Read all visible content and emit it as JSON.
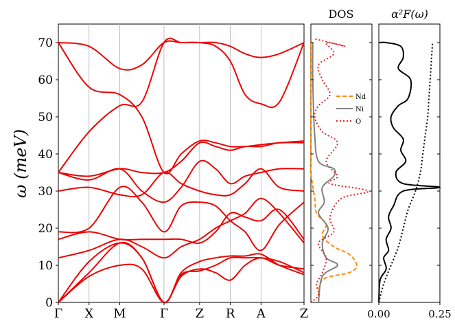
{
  "chart_data": [
    {
      "type": "line",
      "panel": "phonon-dispersion",
      "ylabel": "ω (meV)",
      "ylim": [
        0,
        75
      ],
      "yticks": [
        0,
        10,
        20,
        30,
        40,
        50,
        60,
        70
      ],
      "xtick_labels": [
        "Γ",
        "X",
        "M",
        "Γ",
        "Z",
        "R",
        "A",
        "Z"
      ],
      "xtick_positions": [
        0,
        0.125,
        0.25,
        0.43,
        0.575,
        0.7,
        0.825,
        1.0
      ],
      "grid": "vertical lines at high-symmetry points",
      "color": "#ee0000",
      "branches": [
        [
          [
            0,
            0
          ],
          [
            0.125,
            7
          ],
          [
            0.25,
            10
          ],
          [
            0.34,
            9
          ],
          [
            0.43,
            0
          ],
          [
            0.5,
            7
          ],
          [
            0.575,
            9
          ],
          [
            0.64,
            8
          ],
          [
            0.7,
            6
          ],
          [
            0.76,
            10
          ],
          [
            0.825,
            12
          ],
          [
            0.9,
            10
          ],
          [
            1.0,
            9
          ]
        ],
        [
          [
            0,
            0
          ],
          [
            0.125,
            8
          ],
          [
            0.25,
            16
          ],
          [
            0.34,
            12
          ],
          [
            0.43,
            0
          ],
          [
            0.5,
            7.5
          ],
          [
            0.575,
            8.5
          ],
          [
            0.64,
            10
          ],
          [
            0.7,
            12
          ],
          [
            0.76,
            12
          ],
          [
            0.825,
            12
          ],
          [
            0.9,
            11
          ],
          [
            1.0,
            8
          ]
        ],
        [
          [
            0,
            0
          ],
          [
            0.125,
            11
          ],
          [
            0.25,
            16
          ],
          [
            0.34,
            12
          ],
          [
            0.43,
            0
          ],
          [
            0.5,
            8
          ],
          [
            0.575,
            11
          ],
          [
            0.64,
            12
          ],
          [
            0.7,
            12.5
          ],
          [
            0.76,
            12.5
          ],
          [
            0.825,
            13
          ],
          [
            0.9,
            10
          ],
          [
            1.0,
            7.5
          ]
        ],
        [
          [
            0,
            12
          ],
          [
            0.125,
            14
          ],
          [
            0.25,
            17
          ],
          [
            0.34,
            15
          ],
          [
            0.43,
            12
          ],
          [
            0.5,
            15
          ],
          [
            0.575,
            17
          ],
          [
            0.64,
            20
          ],
          [
            0.7,
            22
          ],
          [
            0.76,
            24
          ],
          [
            0.825,
            28
          ],
          [
            0.9,
            24
          ],
          [
            1.0,
            16
          ]
        ],
        [
          [
            0,
            17
          ],
          [
            0.125,
            19
          ],
          [
            0.25,
            17
          ],
          [
            0.34,
            17
          ],
          [
            0.43,
            17
          ],
          [
            0.5,
            17
          ],
          [
            0.575,
            16
          ],
          [
            0.64,
            19
          ],
          [
            0.7,
            24
          ],
          [
            0.76,
            23
          ],
          [
            0.825,
            22
          ],
          [
            0.9,
            25
          ],
          [
            1.0,
            17
          ]
        ],
        [
          [
            0,
            19
          ],
          [
            0.125,
            20
          ],
          [
            0.25,
            31
          ],
          [
            0.34,
            27
          ],
          [
            0.43,
            19
          ],
          [
            0.5,
            26
          ],
          [
            0.575,
            27
          ],
          [
            0.64,
            26
          ],
          [
            0.7,
            22
          ],
          [
            0.76,
            19
          ],
          [
            0.825,
            14
          ],
          [
            0.9,
            21
          ],
          [
            1.0,
            27
          ]
        ],
        [
          [
            0,
            30
          ],
          [
            0.125,
            31
          ],
          [
            0.25,
            29
          ],
          [
            0.34,
            29
          ],
          [
            0.43,
            35
          ],
          [
            0.5,
            32
          ],
          [
            0.575,
            30
          ],
          [
            0.64,
            29
          ],
          [
            0.7,
            29
          ],
          [
            0.76,
            32
          ],
          [
            0.825,
            36
          ],
          [
            0.9,
            31
          ],
          [
            1.0,
            30
          ]
        ],
        [
          [
            0,
            35
          ],
          [
            0.125,
            33
          ],
          [
            0.25,
            36
          ],
          [
            0.34,
            30
          ],
          [
            0.43,
            27
          ],
          [
            0.5,
            31
          ],
          [
            0.575,
            38
          ],
          [
            0.64,
            36
          ],
          [
            0.7,
            32
          ],
          [
            0.76,
            34
          ],
          [
            0.825,
            35
          ],
          [
            0.9,
            36
          ],
          [
            1.0,
            36
          ]
        ],
        [
          [
            0,
            35
          ],
          [
            0.125,
            34
          ],
          [
            0.25,
            36
          ],
          [
            0.34,
            35
          ],
          [
            0.43,
            35
          ],
          [
            0.5,
            38
          ],
          [
            0.575,
            43
          ],
          [
            0.64,
            42
          ],
          [
            0.7,
            41
          ],
          [
            0.76,
            42
          ],
          [
            0.825,
            42
          ],
          [
            0.9,
            43
          ],
          [
            1.0,
            43
          ]
        ],
        [
          [
            0,
            35
          ],
          [
            0.125,
            46
          ],
          [
            0.25,
            53
          ],
          [
            0.34,
            54
          ],
          [
            0.43,
            70
          ],
          [
            0.5,
            70
          ],
          [
            0.575,
            70
          ],
          [
            0.64,
            69
          ],
          [
            0.7,
            65
          ],
          [
            0.76,
            56
          ],
          [
            0.825,
            53.5
          ],
          [
            0.9,
            54
          ],
          [
            1.0,
            70
          ]
        ],
        [
          [
            0,
            70
          ],
          [
            0.125,
            58
          ],
          [
            0.25,
            56
          ],
          [
            0.34,
            50
          ],
          [
            0.43,
            35
          ],
          [
            0.5,
            40
          ],
          [
            0.575,
            43.5
          ],
          [
            0.64,
            43
          ],
          [
            0.7,
            42
          ],
          [
            0.76,
            42
          ],
          [
            0.825,
            42.5
          ],
          [
            0.9,
            43
          ],
          [
            1.0,
            43.5
          ]
        ],
        [
          [
            0,
            70
          ],
          [
            0.125,
            69
          ],
          [
            0.25,
            63
          ],
          [
            0.34,
            64
          ],
          [
            0.43,
            70
          ],
          [
            0.5,
            70
          ],
          [
            0.575,
            70
          ],
          [
            0.64,
            70
          ],
          [
            0.7,
            69
          ],
          [
            0.76,
            67
          ],
          [
            0.825,
            66
          ],
          [
            0.9,
            67
          ],
          [
            1.0,
            70
          ]
        ]
      ]
    },
    {
      "type": "line",
      "panel": "dos",
      "title": "DOS",
      "legend_position": "right",
      "series": [
        {
          "name": "Nd",
          "color": "#ff8c00",
          "dash": "dashed",
          "points": [
            [
              0.02,
              0
            ],
            [
              0.03,
              6
            ],
            [
              0.1,
              8
            ],
            [
              0.12,
              10
            ],
            [
              0.1,
              13
            ],
            [
              0.06,
              15
            ],
            [
              0.03,
              18
            ],
            [
              0.04,
              21
            ],
            [
              0.015,
              24
            ],
            [
              0.01,
              28
            ],
            [
              0,
              35
            ],
            [
              0,
              40
            ],
            [
              0,
              70
            ]
          ]
        },
        {
          "name": "Ni",
          "color": "#808080",
          "dash": "solid",
          "points": [
            [
              0.02,
              0
            ],
            [
              0.03,
              7
            ],
            [
              0.07,
              10
            ],
            [
              0.04,
              12
            ],
            [
              0.03,
              16
            ],
            [
              0.045,
              20
            ],
            [
              0.02,
              24
            ],
            [
              0.035,
              27
            ],
            [
              0.03,
              31
            ],
            [
              0.06,
              34
            ],
            [
              0.06,
              36
            ],
            [
              0.02,
              38
            ],
            [
              0.01,
              45
            ],
            [
              0.005,
              60
            ],
            [
              0.005,
              70
            ]
          ]
        },
        {
          "name": "O",
          "color": "#dd2222",
          "dash": "dotted",
          "points": [
            [
              0,
              0
            ],
            [
              0.02,
              2
            ],
            [
              0.015,
              5
            ],
            [
              0.03,
              8
            ],
            [
              0.04,
              12
            ],
            [
              0.02,
              16
            ],
            [
              0.06,
              19
            ],
            [
              0.05,
              23
            ],
            [
              0.08,
              28
            ],
            [
              0.15,
              30
            ],
            [
              0.05,
              32
            ],
            [
              0.07,
              34
            ],
            [
              0.04,
              38
            ],
            [
              0.07,
              43
            ],
            [
              0.03,
              46
            ],
            [
              0.01,
              50
            ],
            [
              0.02,
              53
            ],
            [
              0.05,
              56
            ],
            [
              0.03,
              60
            ],
            [
              0.02,
              64
            ],
            [
              0.06,
              67
            ],
            [
              0.04,
              70
            ],
            [
              0.09,
              69
            ],
            [
              0.01,
              71
            ]
          ]
        }
      ]
    },
    {
      "type": "line",
      "panel": "eliashberg",
      "title": "α²F(ω)",
      "xlim": [
        0,
        0.25
      ],
      "xtick_labels": [
        "0.00",
        "0.25"
      ],
      "series": [
        {
          "name": "",
          "color": "#000000",
          "dash": "solid",
          "points": [
            [
              0,
              0
            ],
            [
              0.005,
              6
            ],
            [
              0.03,
              9
            ],
            [
              0.02,
              12
            ],
            [
              0.04,
              14
            ],
            [
              0.03,
              17
            ],
            [
              0.05,
              20
            ],
            [
              0.04,
              23
            ],
            [
              0.06,
              26
            ],
            [
              0.1,
              30
            ],
            [
              0.25,
              31
            ],
            [
              0.1,
              32
            ],
            [
              0.07,
              35
            ],
            [
              0.11,
              38
            ],
            [
              0.09,
              41
            ],
            [
              0.1,
              44
            ],
            [
              0.06,
              47
            ],
            [
              0.05,
              50
            ],
            [
              0.08,
              53
            ],
            [
              0.12,
              55
            ],
            [
              0.13,
              60
            ],
            [
              0.08,
              63
            ],
            [
              0.1,
              66
            ],
            [
              0.09,
              69
            ],
            [
              0.03,
              70
            ],
            [
              0,
              70
            ]
          ]
        },
        {
          "name": "",
          "color": "#000000",
          "dash": "dotted",
          "points": [
            [
              0,
              0
            ],
            [
              0.02,
              5
            ],
            [
              0.05,
              10
            ],
            [
              0.08,
              15
            ],
            [
              0.1,
              20
            ],
            [
              0.12,
              25
            ],
            [
              0.15,
              30
            ],
            [
              0.17,
              35
            ],
            [
              0.18,
              40
            ],
            [
              0.19,
              45
            ],
            [
              0.2,
              50
            ],
            [
              0.205,
              55
            ],
            [
              0.21,
              60
            ],
            [
              0.215,
              65
            ],
            [
              0.22,
              70
            ]
          ]
        }
      ]
    }
  ]
}
